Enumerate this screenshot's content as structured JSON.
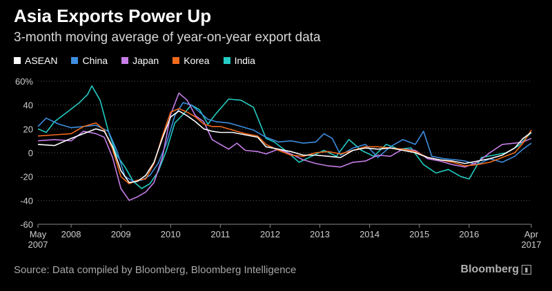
{
  "header": {
    "title": "Asia Exports Power Up",
    "subtitle": "3-month moving average of year-on-year export data"
  },
  "footer": {
    "source": "Source: Data compiled by Bloomberg, Bloomberg Intelligence",
    "brand": "Bloomberg",
    "brand_icon": "bloomberg-chart-icon"
  },
  "chart_data": {
    "type": "line",
    "title": "Asia Exports Power Up",
    "subtitle": "3-month moving average of year-on-year export data",
    "xlabel": "",
    "ylabel": "",
    "x_range": [
      "2007-05",
      "2017-04"
    ],
    "ylim": [
      -60,
      60
    ],
    "y_ticks": [
      {
        "value": 60,
        "label": "60%"
      },
      {
        "value": 40,
        "label": "40"
      },
      {
        "value": 20,
        "label": "20"
      },
      {
        "value": 0,
        "label": "0"
      },
      {
        "value": -20,
        "label": "-20"
      },
      {
        "value": -40,
        "label": "-40"
      },
      {
        "value": -60,
        "label": "-60"
      }
    ],
    "x_ticks": [
      {
        "date": "2007-05",
        "label": "May",
        "label2": "2007"
      },
      {
        "date": "2008-01",
        "label": "2008"
      },
      {
        "date": "2009-01",
        "label": "2009"
      },
      {
        "date": "2010-01",
        "label": "2010"
      },
      {
        "date": "2011-01",
        "label": "2011"
      },
      {
        "date": "2012-01",
        "label": "2012"
      },
      {
        "date": "2013-01",
        "label": "2013"
      },
      {
        "date": "2014-01",
        "label": "2014"
      },
      {
        "date": "2015-01",
        "label": "2015"
      },
      {
        "date": "2016-01",
        "label": "2016"
      },
      {
        "date": "2017-04",
        "label": "Apr",
        "label2": "2017"
      }
    ],
    "grid": "horizontal dotted",
    "legend_position": "top-left",
    "series": [
      {
        "name": "ASEAN",
        "color": "#ffffff",
        "points": [
          [
            "2007-05",
            7
          ],
          [
            "2007-09",
            6
          ],
          [
            "2008-01",
            12
          ],
          [
            "2008-04",
            16
          ],
          [
            "2008-07",
            20
          ],
          [
            "2008-09",
            18
          ],
          [
            "2008-11",
            5
          ],
          [
            "2009-01",
            -15
          ],
          [
            "2009-03",
            -25
          ],
          [
            "2009-05",
            -24
          ],
          [
            "2009-07",
            -19
          ],
          [
            "2009-09",
            -8
          ],
          [
            "2009-11",
            12
          ],
          [
            "2010-01",
            30
          ],
          [
            "2010-03",
            35
          ],
          [
            "2010-05",
            31
          ],
          [
            "2010-07",
            26
          ],
          [
            "2010-09",
            20
          ],
          [
            "2010-11",
            18
          ],
          [
            "2011-01",
            17
          ],
          [
            "2011-04",
            17
          ],
          [
            "2011-07",
            15
          ],
          [
            "2011-10",
            13
          ],
          [
            "2011-12",
            5
          ],
          [
            "2012-03",
            3
          ],
          [
            "2012-06",
            1
          ],
          [
            "2012-09",
            -2
          ],
          [
            "2012-12",
            -2
          ],
          [
            "2013-03",
            -3
          ],
          [
            "2013-06",
            -4
          ],
          [
            "2013-09",
            2
          ],
          [
            "2013-12",
            4
          ],
          [
            "2014-03",
            3
          ],
          [
            "2014-06",
            4
          ],
          [
            "2014-09",
            2
          ],
          [
            "2014-12",
            0
          ],
          [
            "2015-03",
            -4
          ],
          [
            "2015-06",
            -6
          ],
          [
            "2015-09",
            -7
          ],
          [
            "2015-12",
            -9
          ],
          [
            "2016-03",
            -7
          ],
          [
            "2016-06",
            -5
          ],
          [
            "2016-09",
            -2
          ],
          [
            "2016-12",
            4
          ],
          [
            "2017-02",
            12
          ],
          [
            "2017-04",
            17
          ]
        ]
      },
      {
        "name": "China",
        "color": "#3d8ee0",
        "points": [
          [
            "2007-05",
            22
          ],
          [
            "2007-07",
            29
          ],
          [
            "2007-10",
            24
          ],
          [
            "2008-01",
            21
          ],
          [
            "2008-04",
            22
          ],
          [
            "2008-07",
            23
          ],
          [
            "2008-10",
            18
          ],
          [
            "2008-12",
            2
          ],
          [
            "2009-02",
            -20
          ],
          [
            "2009-04",
            -24
          ],
          [
            "2009-06",
            -23
          ],
          [
            "2009-08",
            -19
          ],
          [
            "2009-10",
            -9
          ],
          [
            "2009-12",
            8
          ],
          [
            "2010-02",
            31
          ],
          [
            "2010-04",
            42
          ],
          [
            "2010-06",
            40
          ],
          [
            "2010-08",
            34
          ],
          [
            "2010-10",
            28
          ],
          [
            "2010-12",
            26
          ],
          [
            "2011-03",
            25
          ],
          [
            "2011-06",
            22
          ],
          [
            "2011-09",
            19
          ],
          [
            "2011-12",
            13
          ],
          [
            "2012-03",
            9
          ],
          [
            "2012-06",
            10
          ],
          [
            "2012-09",
            8
          ],
          [
            "2012-12",
            9
          ],
          [
            "2013-02",
            16
          ],
          [
            "2013-04",
            12
          ],
          [
            "2013-06",
            -2
          ],
          [
            "2013-09",
            4
          ],
          [
            "2013-12",
            7
          ],
          [
            "2014-03",
            -4
          ],
          [
            "2014-06",
            5
          ],
          [
            "2014-09",
            11
          ],
          [
            "2014-12",
            7
          ],
          [
            "2015-02",
            18
          ],
          [
            "2015-04",
            -3
          ],
          [
            "2015-07",
            -5
          ],
          [
            "2015-10",
            -6
          ],
          [
            "2015-12",
            -7
          ],
          [
            "2016-03",
            -10
          ],
          [
            "2016-06",
            -5
          ],
          [
            "2016-09",
            -8
          ],
          [
            "2016-12",
            -3
          ],
          [
            "2017-02",
            3
          ],
          [
            "2017-04",
            8
          ]
        ]
      },
      {
        "name": "Japan",
        "color": "#c77ee8",
        "points": [
          [
            "2007-05",
            10
          ],
          [
            "2007-09",
            11
          ],
          [
            "2008-01",
            10
          ],
          [
            "2008-04",
            18
          ],
          [
            "2008-07",
            16
          ],
          [
            "2008-09",
            13
          ],
          [
            "2008-11",
            -4
          ],
          [
            "2009-01",
            -30
          ],
          [
            "2009-03",
            -40
          ],
          [
            "2009-05",
            -37
          ],
          [
            "2009-07",
            -33
          ],
          [
            "2009-09",
            -25
          ],
          [
            "2009-11",
            -4
          ],
          [
            "2010-01",
            32
          ],
          [
            "2010-03",
            50
          ],
          [
            "2010-05",
            44
          ],
          [
            "2010-07",
            31
          ],
          [
            "2010-09",
            26
          ],
          [
            "2010-11",
            11
          ],
          [
            "2011-01",
            7
          ],
          [
            "2011-03",
            3
          ],
          [
            "2011-05",
            8
          ],
          [
            "2011-07",
            2
          ],
          [
            "2011-10",
            1
          ],
          [
            "2011-12",
            -1
          ],
          [
            "2012-03",
            3
          ],
          [
            "2012-06",
            -1
          ],
          [
            "2012-09",
            -6
          ],
          [
            "2012-12",
            -9
          ],
          [
            "2013-03",
            -11
          ],
          [
            "2013-06",
            -12
          ],
          [
            "2013-09",
            -8
          ],
          [
            "2013-12",
            -7
          ],
          [
            "2014-03",
            -2
          ],
          [
            "2014-06",
            -3
          ],
          [
            "2014-09",
            3
          ],
          [
            "2014-12",
            2
          ],
          [
            "2015-03",
            -5
          ],
          [
            "2015-06",
            -7
          ],
          [
            "2015-09",
            -10
          ],
          [
            "2015-12",
            -12
          ],
          [
            "2016-03",
            -8
          ],
          [
            "2016-06",
            0
          ],
          [
            "2016-09",
            7
          ],
          [
            "2016-12",
            8
          ],
          [
            "2017-02",
            9
          ],
          [
            "2017-04",
            12
          ]
        ]
      },
      {
        "name": "Korea",
        "color": "#f26b1d",
        "points": [
          [
            "2007-05",
            14
          ],
          [
            "2007-09",
            15
          ],
          [
            "2008-01",
            16
          ],
          [
            "2008-04",
            22
          ],
          [
            "2008-07",
            25
          ],
          [
            "2008-09",
            19
          ],
          [
            "2008-11",
            3
          ],
          [
            "2009-01",
            -20
          ],
          [
            "2009-03",
            -26
          ],
          [
            "2009-05",
            -23
          ],
          [
            "2009-07",
            -22
          ],
          [
            "2009-09",
            -9
          ],
          [
            "2009-11",
            14
          ],
          [
            "2010-01",
            34
          ],
          [
            "2010-03",
            37
          ],
          [
            "2010-05",
            34
          ],
          [
            "2010-07",
            30
          ],
          [
            "2010-09",
            24
          ],
          [
            "2010-11",
            22
          ],
          [
            "2011-01",
            22
          ],
          [
            "2011-04",
            19
          ],
          [
            "2011-07",
            16
          ],
          [
            "2011-10",
            14
          ],
          [
            "2011-12",
            7
          ],
          [
            "2012-03",
            2
          ],
          [
            "2012-06",
            -2
          ],
          [
            "2012-09",
            -3
          ],
          [
            "2012-12",
            0
          ],
          [
            "2013-03",
            1
          ],
          [
            "2013-06",
            -1
          ],
          [
            "2013-09",
            2
          ],
          [
            "2013-12",
            5
          ],
          [
            "2014-03",
            5
          ],
          [
            "2014-06",
            4
          ],
          [
            "2014-09",
            3
          ],
          [
            "2014-12",
            1
          ],
          [
            "2015-03",
            -4
          ],
          [
            "2015-06",
            -6
          ],
          [
            "2015-09",
            -8
          ],
          [
            "2015-12",
            -11
          ],
          [
            "2016-03",
            -10
          ],
          [
            "2016-06",
            -8
          ],
          [
            "2016-09",
            -4
          ],
          [
            "2016-12",
            0
          ],
          [
            "2017-02",
            8
          ],
          [
            "2017-04",
            19
          ]
        ]
      },
      {
        "name": "India",
        "color": "#23cdc4",
        "points": [
          [
            "2007-05",
            20
          ],
          [
            "2007-07",
            17
          ],
          [
            "2007-09",
            26
          ],
          [
            "2007-12",
            34
          ],
          [
            "2008-03",
            42
          ],
          [
            "2008-05",
            49
          ],
          [
            "2008-06",
            56
          ],
          [
            "2008-08",
            44
          ],
          [
            "2008-10",
            18
          ],
          [
            "2008-12",
            -2
          ],
          [
            "2009-02",
            -12
          ],
          [
            "2009-04",
            -24
          ],
          [
            "2009-06",
            -30
          ],
          [
            "2009-08",
            -26
          ],
          [
            "2009-10",
            -16
          ],
          [
            "2009-12",
            2
          ],
          [
            "2010-02",
            25
          ],
          [
            "2010-04",
            32
          ],
          [
            "2010-06",
            40
          ],
          [
            "2010-08",
            36
          ],
          [
            "2010-10",
            24
          ],
          [
            "2010-12",
            33
          ],
          [
            "2011-03",
            45
          ],
          [
            "2011-06",
            44
          ],
          [
            "2011-09",
            38
          ],
          [
            "2011-12",
            12
          ],
          [
            "2012-02",
            9
          ],
          [
            "2012-05",
            1
          ],
          [
            "2012-08",
            -8
          ],
          [
            "2012-11",
            -3
          ],
          [
            "2013-02",
            2
          ],
          [
            "2013-05",
            -3
          ],
          [
            "2013-08",
            11
          ],
          [
            "2013-11",
            2
          ],
          [
            "2014-02",
            -3
          ],
          [
            "2014-05",
            7
          ],
          [
            "2014-08",
            3
          ],
          [
            "2014-11",
            4
          ],
          [
            "2015-02",
            -10
          ],
          [
            "2015-05",
            -17
          ],
          [
            "2015-08",
            -14
          ],
          [
            "2015-11",
            -20
          ],
          [
            "2016-01",
            -22
          ],
          [
            "2016-04",
            -4
          ],
          [
            "2016-07",
            -2
          ],
          [
            "2016-10",
            0
          ],
          [
            "2017-01",
            6
          ],
          [
            "2017-04",
            17
          ]
        ]
      }
    ]
  }
}
